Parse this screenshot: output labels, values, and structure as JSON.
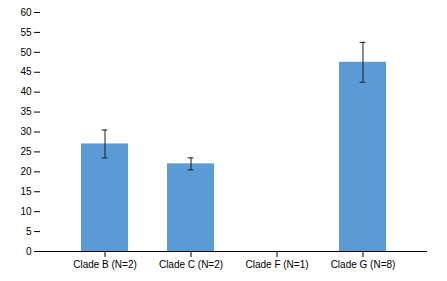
{
  "chart_data": {
    "type": "bar",
    "categories": [
      "Clade B (N=2)",
      "Clade C (N=2)",
      "Clade F (N=1)",
      "Clade G (N=8)"
    ],
    "values": [
      27.0,
      22.0,
      0.0,
      47.5
    ],
    "errors": [
      3.5,
      1.5,
      0.0,
      5.0
    ],
    "color": "#5B9BD5",
    "ylim": [
      0,
      60
    ],
    "yticks": [
      0,
      5,
      10,
      15,
      20,
      25,
      30,
      35,
      40,
      45,
      50,
      55,
      60
    ]
  }
}
